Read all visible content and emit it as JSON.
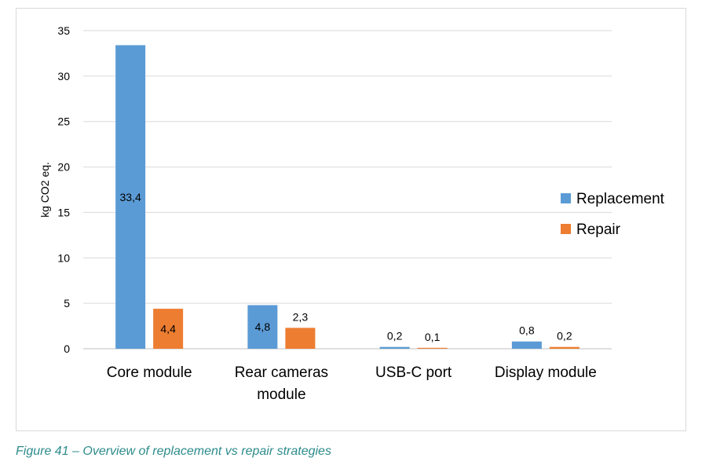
{
  "chart_data": {
    "type": "bar",
    "title": "",
    "xlabel": "",
    "ylabel": "kg CO2 eq.",
    "ylim": [
      0,
      35
    ],
    "yticks": [
      0,
      5,
      10,
      15,
      20,
      25,
      30,
      35
    ],
    "ytick_labels": [
      "0",
      "5",
      "10",
      "15",
      "20",
      "25",
      "30",
      "35"
    ],
    "categories": [
      [
        "Core module"
      ],
      [
        "Rear cameras",
        "module"
      ],
      [
        "USB-C port"
      ],
      [
        "Display module"
      ]
    ],
    "series": [
      {
        "name": "Replacement",
        "color": "#5b9bd5",
        "values": [
          33.4,
          4.8,
          0.2,
          0.8
        ],
        "labels": [
          "33,4",
          "4,8",
          "0,2",
          "0,8"
        ]
      },
      {
        "name": "Repair",
        "color": "#ed7d31",
        "values": [
          4.4,
          2.3,
          0.1,
          0.2
        ],
        "labels": [
          "4,4",
          "2,3",
          "0,1",
          "0,2"
        ]
      }
    ],
    "grid": true,
    "legend_position": "right"
  },
  "caption": "Figure 41 – Overview of replacement vs repair strategies"
}
